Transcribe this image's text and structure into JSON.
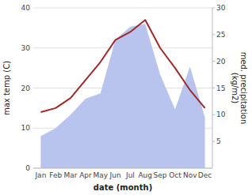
{
  "chart_data": {
    "type": "line",
    "xlabel": "date (month)",
    "ylabel": "max temp (C)",
    "y2label": "med. precipitation\n(kg/m2)",
    "categories": [
      "Jan",
      "Feb",
      "Mar",
      "Apr",
      "May",
      "Jun",
      "Jul",
      "Aug",
      "Sep",
      "Oct",
      "Nov",
      "Dec"
    ],
    "series": [
      {
        "type": "area",
        "axis": "y2",
        "color": "#b8c4ee",
        "values": [
          6.0,
          7.5,
          10.0,
          13.0,
          14.0,
          24.0,
          26.5,
          27.0,
          17.5,
          11.0,
          19.0,
          9.5
        ]
      },
      {
        "type": "line",
        "color": "#9e2a2b",
        "values": [
          14.0,
          15.0,
          17.5,
          22.0,
          26.5,
          32.0,
          34.0,
          37.0,
          30.0,
          25.0,
          19.5,
          15.0
        ]
      }
    ],
    "ylim": [
      0,
      40
    ],
    "yticks": [
      0,
      10,
      20,
      30,
      40
    ],
    "y2lim": [
      0,
      30
    ],
    "y2ticks": [
      5,
      10,
      15,
      20,
      25,
      30
    ],
    "grid": true
  }
}
